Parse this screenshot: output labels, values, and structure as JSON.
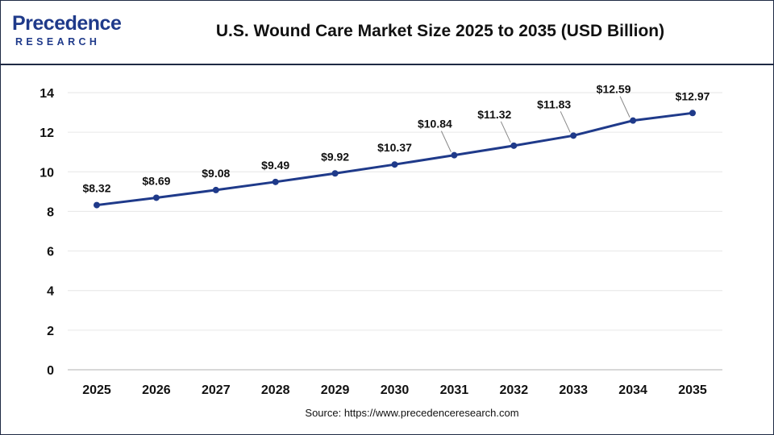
{
  "logo": {
    "wordmark": "Precedence",
    "subtitle": "RESEARCH",
    "brand_color": "#1f3a8a"
  },
  "title": "U.S. Wound Care Market Size 2025 to 2035 (USD Billion)",
  "source": "Source: https://www.precedenceresearch.com",
  "chart_data": {
    "type": "line",
    "title": "U.S. Wound Care Market Size 2025 to 2035 (USD Billion)",
    "xlabel": "",
    "ylabel": "",
    "categories": [
      "2025",
      "2026",
      "2027",
      "2028",
      "2029",
      "2030",
      "2031",
      "2032",
      "2033",
      "2034",
      "2035"
    ],
    "series": [
      {
        "values": [
          8.32,
          8.69,
          9.08,
          9.49,
          9.92,
          10.37,
          10.84,
          11.32,
          11.83,
          12.59,
          12.97
        ],
        "data_labels": [
          "$8.32",
          "$8.69",
          "$9.08",
          "$9.49",
          "$9.92",
          "$10.37",
          "$10.84",
          "$11.32",
          "$11.83",
          "$12.59",
          "$12.97"
        ],
        "color": "#1f3a8a"
      }
    ],
    "ylim": [
      0,
      14
    ],
    "yticks": [
      "0",
      "2",
      "4",
      "6",
      "8",
      "10",
      "12",
      "14"
    ],
    "grid": true,
    "grid_color": "#e6e6e6",
    "legend": "none"
  }
}
